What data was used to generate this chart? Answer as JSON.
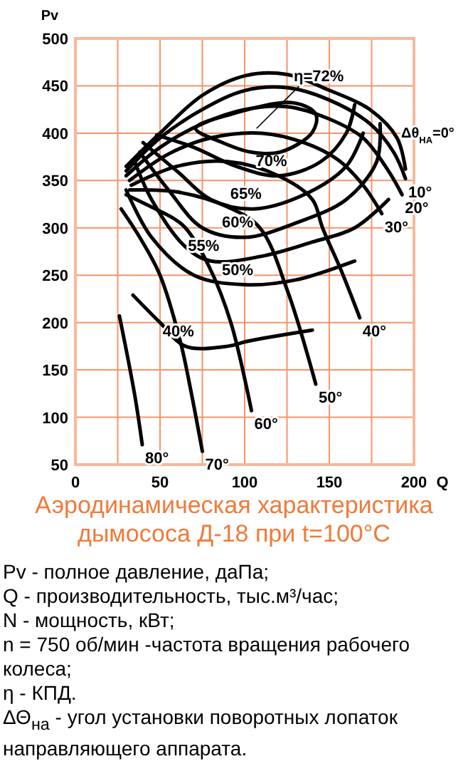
{
  "chart_data": {
    "type": "line",
    "title": "Аэродинамическая характеристика дымососа Д-18 при t=100°C",
    "xlabel": "Q",
    "ylabel": "Pv",
    "xlim": [
      0,
      200
    ],
    "ylim": [
      50,
      500
    ],
    "xticks": [
      0,
      {
        "value": 25,
        "label": null
      },
      50,
      {
        "value": 75,
        "label": null
      },
      100,
      {
        "value": 125,
        "label": null
      },
      150,
      {
        "value": 175,
        "label": null
      },
      200
    ],
    "yticks": [
      50,
      100,
      150,
      200,
      250,
      300,
      350,
      400,
      450,
      500
    ],
    "grid": true,
    "legend": false,
    "marker": "none",
    "line_style": "solid",
    "series": [
      {
        "color": "#000000",
        "x": [
          30,
          50,
          75,
          101,
          125,
          149,
          174,
          190,
          195
        ],
        "values": [
          365,
          400,
          440,
          461,
          462,
          446,
          425,
          395,
          362
        ]
      },
      {
        "name": "10°",
        "color": "#000000",
        "x": [
          30,
          50,
          75,
          100,
          125,
          150,
          174,
          188,
          195
        ],
        "values": [
          360,
          395,
          425,
          445,
          448,
          435,
          410,
          380,
          352
        ]
      },
      {
        "name": "20°",
        "color": "#000000",
        "x": [
          30,
          50,
          75,
          100,
          125,
          150,
          170,
          185,
          193
        ],
        "values": [
          355,
          385,
          410,
          425,
          428,
          415,
          395,
          360,
          335
        ]
      },
      {
        "name": "30°",
        "color": "#000000",
        "x": [
          32,
          55,
          80,
          110,
          135,
          155,
          170,
          181
        ],
        "values": [
          350,
          378,
          395,
          400,
          390,
          372,
          345,
          315
        ]
      },
      {
        "name": "40°",
        "color": "#000000",
        "x": [
          33,
          60,
          90,
          120,
          140,
          146,
          157,
          168
        ],
        "values": [
          345,
          365,
          370,
          355,
          330,
          300,
          255,
          205
        ]
      },
      {
        "name": "50°",
        "color": "#000000",
        "x": [
          32,
          60,
          90,
          109,
          125,
          142
        ],
        "values": [
          340,
          338,
          322,
          300,
          235,
          135
        ]
      },
      {
        "name": "60°",
        "color": "#000000",
        "x": [
          30,
          45,
          58,
          65,
          79,
          92,
          104
        ],
        "values": [
          335,
          322,
          310,
          300,
          259,
          199,
          107
        ]
      },
      {
        "name": "70°",
        "color": "#000000",
        "x": [
          27,
          38,
          50,
          62,
          68,
          75
        ],
        "values": [
          320,
          290,
          250,
          180,
          130,
          64
        ]
      },
      {
        "name": "80°",
        "color": "#000000",
        "x": [
          26,
          35,
          39.5
        ],
        "values": [
          207,
          124,
          71
        ]
      },
      {
        "name": "70%",
        "color": "#000000",
        "x": [
          48,
          70,
          95,
          120,
          145,
          160,
          165
        ],
        "values": [
          398,
          385,
          365,
          355,
          370,
          400,
          430
        ]
      },
      {
        "name": "65%",
        "color": "#000000",
        "x": [
          40,
          60,
          80,
          105,
          135,
          160,
          170
        ],
        "values": [
          390,
          360,
          330,
          320,
          335,
          365,
          400
        ]
      },
      {
        "name": "60%",
        "color": "#000000",
        "x": [
          38,
          55,
          75,
          100,
          130,
          160,
          178,
          180
        ],
        "values": [
          380,
          340,
          300,
          290,
          305,
          330,
          370,
          410
        ]
      },
      {
        "name": "55%",
        "color": "#000000",
        "x": [
          35,
          45,
          65,
          80,
          110,
          140,
          165,
          185
        ],
        "values": [
          370,
          330,
          280,
          265,
          270,
          285,
          300,
          330
        ]
      },
      {
        "name": "50%",
        "color": "#000000",
        "x": [
          30,
          45,
          70,
          100,
          130,
          165
        ],
        "values": [
          340,
          290,
          250,
          240,
          245,
          265
        ]
      },
      {
        "name": "40%",
        "color": "#000000",
        "x": [
          34,
          50,
          65,
          90,
          101,
          140
        ],
        "values": [
          229,
          200,
          175,
          175,
          180,
          192
        ]
      }
    ],
    "annotations": [
      {
        "text": "Δθ$_{НА}$=0°",
        "x": 195,
        "y": 362
      },
      "η=72%",
      "Pv - полное давление, даПа;",
      "Q - производительность, тыс.м³/час;",
      "N - мощность, кВт;",
      "n = 750 об/мин -частота вращения рабочего колеса;",
      "η - КПД.",
      "ΔΘ$_{на}$ - угол установки поворотных лопаток направляющего аппарата."
    ]
  }
}
